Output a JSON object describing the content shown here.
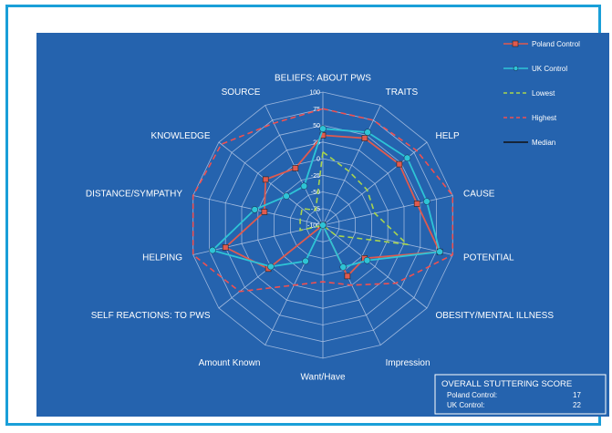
{
  "chart_data": {
    "type": "radar",
    "axes": [
      "BELIEFS: ABOUT PWS",
      "TRAITS",
      "HELP",
      "CAUSE",
      "POTENTIAL",
      "OBESITY/MENTAL ILLNESS",
      "Impression",
      "Want/Have",
      "Amount Known",
      "SELF REACTIONS: TO PWS",
      "HELPING",
      "DISTANCE/SYMPATHY",
      "KNOWLEDGE",
      "SOURCE"
    ],
    "radial_ticks": [
      "100",
      "75",
      "50",
      "25",
      "0",
      "-25",
      "-50",
      "-75",
      "-100"
    ],
    "rlim": [
      -100,
      100
    ],
    "grid": true,
    "legend_position": "top-right",
    "series": [
      {
        "name": "Poland Control",
        "color": "#e05a4e",
        "style": "solid",
        "marker": "square",
        "values": [
          35,
          45,
          47,
          45,
          80,
          -20,
          -15,
          -100,
          -100,
          5,
          50,
          -10,
          10,
          -5
        ]
      },
      {
        "name": "UK Control",
        "color": "#2ec4d6",
        "style": "solid",
        "marker": "circle",
        "values": [
          45,
          55,
          62,
          60,
          80,
          -15,
          -30,
          -100,
          -40,
          0,
          70,
          5,
          -30,
          -35
        ]
      },
      {
        "name": "Lowest",
        "color": "#a8d44e",
        "style": "dashed",
        "marker": "none",
        "values": [
          10,
          -10,
          -15,
          -20,
          30,
          -75,
          -100,
          -100,
          -100,
          -100,
          -65,
          -65,
          -60,
          -75
        ]
      },
      {
        "name": "Highest",
        "color": "#f05050",
        "style": "dashed",
        "marker": "none",
        "values": [
          75,
          75,
          80,
          100,
          100,
          40,
          0,
          -15,
          0,
          60,
          100,
          100,
          95,
          70
        ]
      },
      {
        "name": "Median",
        "color": "#111111",
        "style": "solid",
        "marker": "none",
        "values": []
      }
    ]
  },
  "summary": {
    "title": "OVERALL STUTTERING SCORE",
    "rows": [
      {
        "label": "Poland Control:",
        "value": "17"
      },
      {
        "label": "UK Control:",
        "value": "22"
      }
    ]
  },
  "colors": {
    "panel": "#2563ae",
    "frame": "#1a9fd8",
    "grid": "#b9cbe8"
  }
}
